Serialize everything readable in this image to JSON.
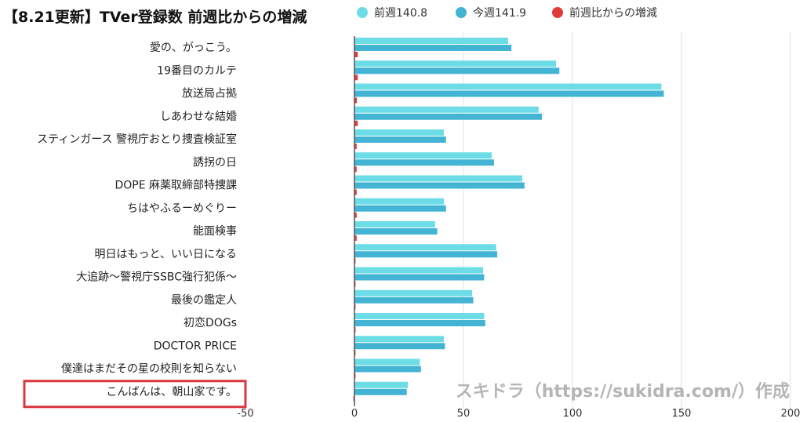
{
  "chart_data": {
    "type": "bar",
    "orientation": "horizontal",
    "title": "【8.21更新】TVer登録数 前週比からの増減",
    "categories": [
      "愛の、がっこう。",
      "19番目のカルテ",
      "放送局占拠",
      "しあわせな結婚",
      "スティンガース 警視庁おとり捜査検証室",
      "誘拐の日",
      "DOPE 麻薬取締部特捜課",
      "ちはやふるーめぐりー",
      "能面検事",
      "明日はもっと、いい日になる",
      "大追跡～警視庁SSBC強行犯係～",
      "最後の鑑定人",
      "初恋DOGs",
      "DOCTOR PRICE",
      "僕達はまだその星の校則を知らない",
      "こんばんは、朝山家です。"
    ],
    "series": [
      {
        "name": "前週140.8",
        "color": "#6cdde6",
        "values": [
          70.5,
          92.5,
          140.8,
          84.5,
          41.0,
          63.0,
          77.0,
          41.0,
          37.0,
          65.0,
          59.0,
          54.0,
          59.5,
          41.0,
          30.0,
          24.5
        ]
      },
      {
        "name": "今週141.9",
        "color": "#43b4d3",
        "values": [
          72.0,
          94.0,
          141.9,
          86.0,
          42.0,
          64.0,
          78.0,
          42.0,
          38.0,
          65.5,
          59.5,
          54.5,
          60.0,
          41.5,
          30.5,
          24.0
        ]
      },
      {
        "name": "前週比からの増減",
        "color": "#e03a3a",
        "values": [
          1.5,
          1.5,
          1.1,
          1.5,
          1.0,
          1.0,
          1.0,
          1.0,
          1.0,
          0.5,
          0.5,
          0.5,
          0.5,
          0.5,
          0.5,
          -0.5
        ]
      }
    ],
    "xlim": [
      -50,
      200
    ],
    "xticks": [
      -50,
      0,
      50,
      100,
      150,
      200
    ],
    "grid": true,
    "legend_position": "top",
    "highlighted_category_index": 15,
    "highlight_color": "#d9363e"
  },
  "watermark": "スキドラ（https://sukidra.com/）作成",
  "axis_color": "#555555",
  "grid_color": "#e2e2e2"
}
